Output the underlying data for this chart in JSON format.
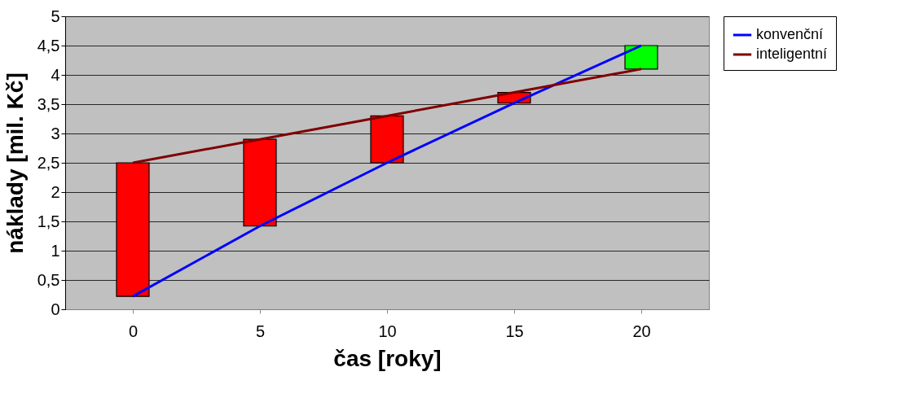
{
  "chart_data": {
    "type": "line",
    "xlabel": "čas [roky]",
    "ylabel": "náklady [mil. Kč]",
    "categories": [
      "0",
      "5",
      "10",
      "15",
      "20"
    ],
    "ylim": [
      0,
      5
    ],
    "yticks": [
      0,
      {
        "value": 0.5,
        "label": "0,5"
      },
      1,
      {
        "value": 1.5,
        "label": "1,5"
      },
      2,
      {
        "value": 2.5,
        "label": "2,5"
      },
      3,
      {
        "value": 3.5,
        "label": "3,5"
      },
      4,
      {
        "value": 4.5,
        "label": "4,5"
      },
      5
    ],
    "grid": "y",
    "legend": "right",
    "series": [
      {
        "type": "bar",
        "base": [
          0.22,
          1.42,
          2.5,
          3.52,
          4.1
        ],
        "values": [
          2.28,
          1.48,
          0.8,
          0.18,
          0.4
        ],
        "colors": [
          "#ff0000",
          "#ff0000",
          "#ff0000",
          "#ff0000",
          "#00ff00"
        ]
      },
      {
        "name": "konvenční",
        "color": "#0000ff",
        "values": [
          0.22,
          1.42,
          2.5,
          3.52,
          4.5
        ]
      },
      {
        "name": "inteligentní",
        "color": "#800000",
        "values": [
          2.5,
          2.9,
          3.3,
          3.7,
          4.1
        ]
      }
    ]
  }
}
